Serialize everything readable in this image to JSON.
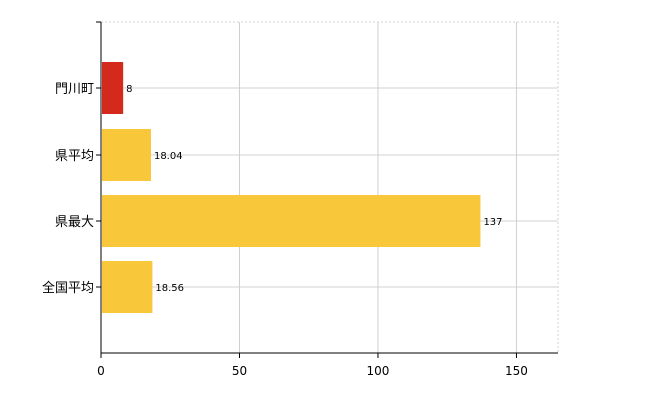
{
  "chart_data": {
    "type": "bar",
    "orientation": "horizontal",
    "categories": [
      "門川町",
      "県平均",
      "県最大",
      "全国平均"
    ],
    "values": [
      8,
      18.04,
      137,
      18.56
    ],
    "data_labels": [
      "8",
      "18.04",
      "137",
      "18.56"
    ],
    "title": "",
    "xlabel": "",
    "ylabel": "",
    "xlim": [
      0,
      165
    ],
    "xticks": [
      0,
      50,
      100,
      150
    ],
    "xtick_labels": [
      "0",
      "50",
      "100",
      "150"
    ],
    "grid": true,
    "legend": "none",
    "colors": {
      "highlight": "#d42a1e",
      "default": "#f9c73a",
      "grid": "#d0d0d0",
      "axis": "#000000"
    },
    "highlight_index": 0
  }
}
